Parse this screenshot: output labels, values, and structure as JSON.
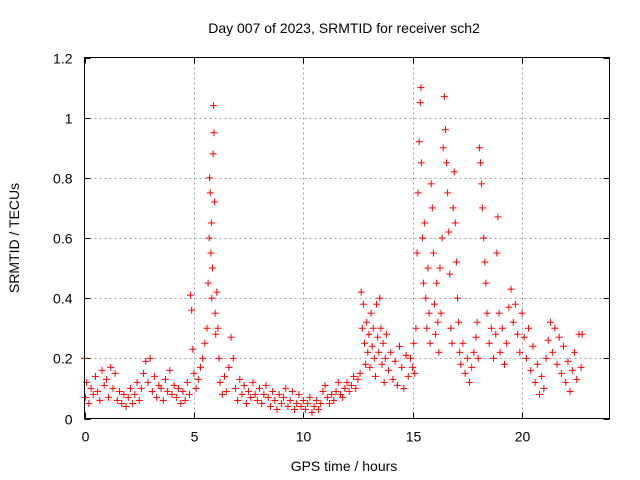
{
  "chart_data": {
    "type": "scatter",
    "title": "Day 007 of 2023, SRMTID for receiver sch2",
    "xlabel": "GPS time / hours",
    "ylabel": "SRMTID / TECUs",
    "xlim": [
      0,
      24
    ],
    "ylim": [
      0,
      1.2
    ],
    "xticks": [
      0,
      5,
      10,
      15,
      20
    ],
    "yticks": [
      0,
      0.2,
      0.4,
      0.6,
      0.8,
      1,
      1.2
    ],
    "xtick_labels": [
      "0",
      "5",
      "10",
      "15",
      "20"
    ],
    "ytick_labels": [
      "0",
      "0.2",
      "0.4",
      "0.6",
      "0.8",
      "1",
      "1.2"
    ],
    "grid": true,
    "marker": "+",
    "color": "#ff0000",
    "series": [
      {
        "name": "sch2",
        "points": [
          [
            0.0,
            0.2
          ],
          [
            0.05,
            0.07
          ],
          [
            0.1,
            0.12
          ],
          [
            0.2,
            0.05
          ],
          [
            0.3,
            0.1
          ],
          [
            0.4,
            0.08
          ],
          [
            0.5,
            0.14
          ],
          [
            0.6,
            0.09
          ],
          [
            0.7,
            0.06
          ],
          [
            0.8,
            0.16
          ],
          [
            0.9,
            0.11
          ],
          [
            1.0,
            0.13
          ],
          [
            1.1,
            0.07
          ],
          [
            1.2,
            0.17
          ],
          [
            1.3,
            0.1
          ],
          [
            1.4,
            0.15
          ],
          [
            1.5,
            0.06
          ],
          [
            1.6,
            0.09
          ],
          [
            1.7,
            0.05
          ],
          [
            1.8,
            0.08
          ],
          [
            1.9,
            0.04
          ],
          [
            2.0,
            0.07
          ],
          [
            2.1,
            0.1
          ],
          [
            2.2,
            0.05
          ],
          [
            2.3,
            0.08
          ],
          [
            2.4,
            0.12
          ],
          [
            2.5,
            0.06
          ],
          [
            2.6,
            0.1
          ],
          [
            2.7,
            0.15
          ],
          [
            2.8,
            0.19
          ],
          [
            2.9,
            0.12
          ],
          [
            3.0,
            0.2
          ],
          [
            3.1,
            0.09
          ],
          [
            3.2,
            0.14
          ],
          [
            3.3,
            0.07
          ],
          [
            3.4,
            0.11
          ],
          [
            3.5,
            0.1
          ],
          [
            3.6,
            0.06
          ],
          [
            3.7,
            0.13
          ],
          [
            3.8,
            0.09
          ],
          [
            3.9,
            0.16
          ],
          [
            4.0,
            0.08
          ],
          [
            4.1,
            0.11
          ],
          [
            4.2,
            0.07
          ],
          [
            4.3,
            0.1
          ],
          [
            4.4,
            0.05
          ],
          [
            4.5,
            0.09
          ],
          [
            4.6,
            0.06
          ],
          [
            4.7,
            0.12
          ],
          [
            4.8,
            0.08
          ],
          [
            4.85,
            0.41
          ],
          [
            4.9,
            0.36
          ],
          [
            4.95,
            0.23
          ],
          [
            5.0,
            0.15
          ],
          [
            5.1,
            0.1
          ],
          [
            5.2,
            0.13
          ],
          [
            5.3,
            0.17
          ],
          [
            5.4,
            0.2
          ],
          [
            5.5,
            0.25
          ],
          [
            5.6,
            0.3
          ],
          [
            5.65,
            0.45
          ],
          [
            5.7,
            0.6
          ],
          [
            5.72,
            0.8
          ],
          [
            5.75,
            0.75
          ],
          [
            5.78,
            0.55
          ],
          [
            5.8,
            0.65
          ],
          [
            5.82,
            0.4
          ],
          [
            5.85,
            0.5
          ],
          [
            5.88,
            0.88
          ],
          [
            5.9,
            1.04
          ],
          [
            5.92,
            0.95
          ],
          [
            5.95,
            0.72
          ],
          [
            5.97,
            0.35
          ],
          [
            6.0,
            0.28
          ],
          [
            6.05,
            0.42
          ],
          [
            6.1,
            0.3
          ],
          [
            6.15,
            0.2
          ],
          [
            6.2,
            0.12
          ],
          [
            6.3,
            0.08
          ],
          [
            6.4,
            0.14
          ],
          [
            6.5,
            0.09
          ],
          [
            6.6,
            0.17
          ],
          [
            6.7,
            0.27
          ],
          [
            6.8,
            0.2
          ],
          [
            6.9,
            0.1
          ],
          [
            7.0,
            0.06
          ],
          [
            7.1,
            0.13
          ],
          [
            7.2,
            0.08
          ],
          [
            7.3,
            0.11
          ],
          [
            7.4,
            0.05
          ],
          [
            7.5,
            0.09
          ],
          [
            7.6,
            0.07
          ],
          [
            7.7,
            0.12
          ],
          [
            7.8,
            0.08
          ],
          [
            7.9,
            0.06
          ],
          [
            8.0,
            0.1
          ],
          [
            8.1,
            0.05
          ],
          [
            8.2,
            0.08
          ],
          [
            8.3,
            0.11
          ],
          [
            8.4,
            0.07
          ],
          [
            8.5,
            0.04
          ],
          [
            8.6,
            0.09
          ],
          [
            8.7,
            0.06
          ],
          [
            8.8,
            0.03
          ],
          [
            8.9,
            0.08
          ],
          [
            9.0,
            0.05
          ],
          [
            9.1,
            0.07
          ],
          [
            9.2,
            0.1
          ],
          [
            9.3,
            0.04
          ],
          [
            9.4,
            0.06
          ],
          [
            9.5,
            0.09
          ],
          [
            9.6,
            0.03
          ],
          [
            9.7,
            0.05
          ],
          [
            9.8,
            0.08
          ],
          [
            9.9,
            0.04
          ],
          [
            10.0,
            0.06
          ],
          [
            10.1,
            0.03
          ],
          [
            10.2,
            0.05
          ],
          [
            10.3,
            0.07
          ],
          [
            10.4,
            0.02
          ],
          [
            10.5,
            0.04
          ],
          [
            10.6,
            0.06
          ],
          [
            10.7,
            0.03
          ],
          [
            10.8,
            0.05
          ],
          [
            10.9,
            0.09
          ],
          [
            11.0,
            0.11
          ],
          [
            11.1,
            0.07
          ],
          [
            11.2,
            0.05
          ],
          [
            11.3,
            0.08
          ],
          [
            11.4,
            0.06
          ],
          [
            11.5,
            0.09
          ],
          [
            11.6,
            0.12
          ],
          [
            11.7,
            0.08
          ],
          [
            11.8,
            0.07
          ],
          [
            11.9,
            0.1
          ],
          [
            12.0,
            0.12
          ],
          [
            12.1,
            0.09
          ],
          [
            12.2,
            0.11
          ],
          [
            12.3,
            0.14
          ],
          [
            12.4,
            0.1
          ],
          [
            12.5,
            0.13
          ],
          [
            12.6,
            0.15
          ],
          [
            12.65,
            0.42
          ],
          [
            12.7,
            0.3
          ],
          [
            12.75,
            0.38
          ],
          [
            12.8,
            0.25
          ],
          [
            12.85,
            0.18
          ],
          [
            12.9,
            0.32
          ],
          [
            12.95,
            0.22
          ],
          [
            13.0,
            0.28
          ],
          [
            13.05,
            0.17
          ],
          [
            13.1,
            0.35
          ],
          [
            13.15,
            0.24
          ],
          [
            13.2,
            0.3
          ],
          [
            13.25,
            0.2
          ],
          [
            13.3,
            0.14
          ],
          [
            13.35,
            0.38
          ],
          [
            13.4,
            0.27
          ],
          [
            13.45,
            0.22
          ],
          [
            13.5,
            0.4
          ],
          [
            13.55,
            0.3
          ],
          [
            13.6,
            0.18
          ],
          [
            13.65,
            0.25
          ],
          [
            13.7,
            0.12
          ],
          [
            13.75,
            0.2
          ],
          [
            13.8,
            0.28
          ],
          [
            13.9,
            0.16
          ],
          [
            14.0,
            0.22
          ],
          [
            14.1,
            0.13
          ],
          [
            14.2,
            0.19
          ],
          [
            14.3,
            0.11
          ],
          [
            14.4,
            0.24
          ],
          [
            14.5,
            0.17
          ],
          [
            14.6,
            0.1
          ],
          [
            14.7,
            0.21
          ],
          [
            14.8,
            0.14
          ],
          [
            14.9,
            0.2
          ],
          [
            15.0,
            0.17
          ],
          [
            15.05,
            0.25
          ],
          [
            15.1,
            0.15
          ],
          [
            15.15,
            0.3
          ],
          [
            15.2,
            0.55
          ],
          [
            15.25,
            0.75
          ],
          [
            15.3,
            0.92
          ],
          [
            15.35,
            1.05
          ],
          [
            15.38,
            1.1
          ],
          [
            15.4,
            0.85
          ],
          [
            15.45,
            0.6
          ],
          [
            15.5,
            0.45
          ],
          [
            15.55,
            0.65
          ],
          [
            15.6,
            0.4
          ],
          [
            15.65,
            0.3
          ],
          [
            15.7,
            0.5
          ],
          [
            15.75,
            0.35
          ],
          [
            15.8,
            0.25
          ],
          [
            15.85,
            0.78
          ],
          [
            15.9,
            0.7
          ],
          [
            15.95,
            0.55
          ],
          [
            16.0,
            0.38
          ],
          [
            16.05,
            0.28
          ],
          [
            16.1,
            0.45
          ],
          [
            16.15,
            0.32
          ],
          [
            16.2,
            0.22
          ],
          [
            16.25,
            0.5
          ],
          [
            16.3,
            0.35
          ],
          [
            16.35,
            0.6
          ],
          [
            16.4,
            0.9
          ],
          [
            16.45,
            1.07
          ],
          [
            16.5,
            0.96
          ],
          [
            16.55,
            0.85
          ],
          [
            16.6,
            0.75
          ],
          [
            16.65,
            0.62
          ],
          [
            16.7,
            0.48
          ],
          [
            16.75,
            0.3
          ],
          [
            16.8,
            0.25
          ],
          [
            16.85,
            0.7
          ],
          [
            16.9,
            0.82
          ],
          [
            16.95,
            0.65
          ],
          [
            17.0,
            0.52
          ],
          [
            17.05,
            0.4
          ],
          [
            17.1,
            0.32
          ],
          [
            17.15,
            0.22
          ],
          [
            17.2,
            0.18
          ],
          [
            17.3,
            0.25
          ],
          [
            17.4,
            0.15
          ],
          [
            17.5,
            0.2
          ],
          [
            17.6,
            0.12
          ],
          [
            17.7,
            0.17
          ],
          [
            17.8,
            0.22
          ],
          [
            17.9,
            0.27
          ],
          [
            17.95,
            0.32
          ],
          [
            18.0,
            0.2
          ],
          [
            18.05,
            0.9
          ],
          [
            18.1,
            0.85
          ],
          [
            18.15,
            0.78
          ],
          [
            18.2,
            0.7
          ],
          [
            18.25,
            0.6
          ],
          [
            18.3,
            0.52
          ],
          [
            18.35,
            0.45
          ],
          [
            18.4,
            0.35
          ],
          [
            18.5,
            0.25
          ],
          [
            18.6,
            0.3
          ],
          [
            18.7,
            0.2
          ],
          [
            18.8,
            0.28
          ],
          [
            18.85,
            0.55
          ],
          [
            18.9,
            0.67
          ],
          [
            18.95,
            0.35
          ],
          [
            19.0,
            0.22
          ],
          [
            19.1,
            0.3
          ],
          [
            19.2,
            0.18
          ],
          [
            19.3,
            0.25
          ],
          [
            19.4,
            0.37
          ],
          [
            19.5,
            0.43
          ],
          [
            19.6,
            0.32
          ],
          [
            19.7,
            0.38
          ],
          [
            19.8,
            0.28
          ],
          [
            19.9,
            0.22
          ],
          [
            20.0,
            0.35
          ],
          [
            20.1,
            0.27
          ],
          [
            20.2,
            0.2
          ],
          [
            20.3,
            0.3
          ],
          [
            20.4,
            0.16
          ],
          [
            20.5,
            0.24
          ],
          [
            20.6,
            0.12
          ],
          [
            20.7,
            0.18
          ],
          [
            20.8,
            0.08
          ],
          [
            20.9,
            0.14
          ],
          [
            21.0,
            0.1
          ],
          [
            21.1,
            0.2
          ],
          [
            21.2,
            0.26
          ],
          [
            21.3,
            0.32
          ],
          [
            21.4,
            0.22
          ],
          [
            21.5,
            0.3
          ],
          [
            21.6,
            0.18
          ],
          [
            21.7,
            0.27
          ],
          [
            21.8,
            0.15
          ],
          [
            21.9,
            0.24
          ],
          [
            22.0,
            0.12
          ],
          [
            22.1,
            0.19
          ],
          [
            22.2,
            0.09
          ],
          [
            22.3,
            0.16
          ],
          [
            22.4,
            0.22
          ],
          [
            22.5,
            0.13
          ],
          [
            22.6,
            0.28
          ],
          [
            22.7,
            0.17
          ],
          [
            22.75,
            0.28
          ]
        ]
      }
    ]
  }
}
